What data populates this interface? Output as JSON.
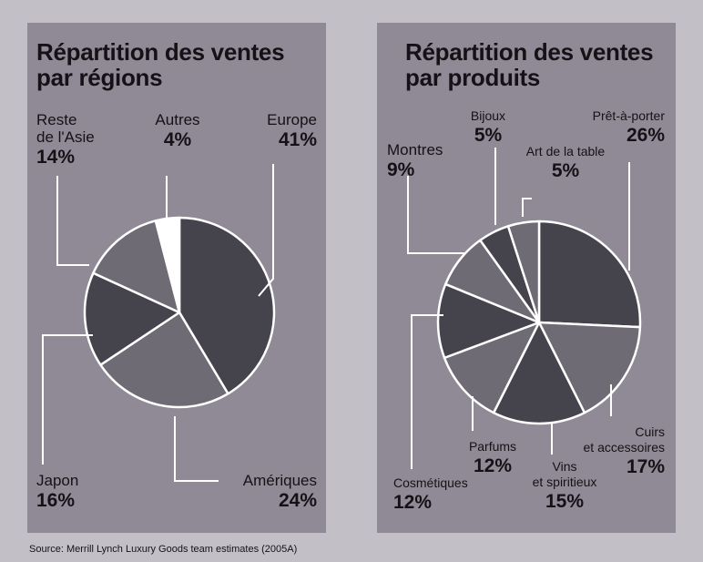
{
  "source": "Source: Merrill Lynch Luxury Goods team estimates (2005A)",
  "colors": {
    "background": "#c2bfc7",
    "panel": "#8f8a95",
    "slice_dark": "#45434c",
    "slice_light": "#6f6b75",
    "slice_white": "#ffffff",
    "stroke": "#ffffff",
    "text": "#141217"
  },
  "chart_data": [
    {
      "type": "pie",
      "title_lines": [
        "Répartition des ventes",
        "par régions"
      ],
      "slices": [
        {
          "name": "Europe",
          "name_lines": [
            "Europe"
          ],
          "value": 41,
          "value_label": "41%",
          "color": "#45434c"
        },
        {
          "name": "Amériques",
          "name_lines": [
            "Amériques"
          ],
          "value": 24,
          "value_label": "24%",
          "color": "#6f6b75"
        },
        {
          "name": "Japon",
          "name_lines": [
            "Japon"
          ],
          "value": 16,
          "value_label": "16%",
          "color": "#45434c"
        },
        {
          "name": "Reste de l'Asie",
          "name_lines": [
            "Reste",
            "de l'Asie"
          ],
          "value": 14,
          "value_label": "14%",
          "color": "#6f6b75"
        },
        {
          "name": "Autres",
          "name_lines": [
            "Autres"
          ],
          "value": 4,
          "value_label": "4%",
          "color": "#ffffff"
        }
      ]
    },
    {
      "type": "pie",
      "title_lines": [
        "Répartition des ventes",
        "par produits"
      ],
      "slices": [
        {
          "name": "Prêt-à-porter",
          "name_lines": [
            "Prêt-à-porter"
          ],
          "value": 26,
          "value_label": "26%",
          "color": "#45434c"
        },
        {
          "name": "Cuirs et accessoires",
          "name_lines": [
            "Cuirs",
            "et accessoires"
          ],
          "value": 17,
          "value_label": "17%",
          "color": "#6f6b75"
        },
        {
          "name": "Vins et spiritieux",
          "name_lines": [
            "Vins",
            "et spiritieux"
          ],
          "value": 15,
          "value_label": "15%",
          "color": "#45434c"
        },
        {
          "name": "Parfums",
          "name_lines": [
            "Parfums"
          ],
          "value": 12,
          "value_label": "12%",
          "color": "#6f6b75"
        },
        {
          "name": "Cosmétiques",
          "name_lines": [
            "Cosmétiques"
          ],
          "value": 12,
          "value_label": "12%",
          "color": "#45434c"
        },
        {
          "name": "Montres",
          "name_lines": [
            "Montres"
          ],
          "value": 9,
          "value_label": "9%",
          "color": "#6f6b75"
        },
        {
          "name": "Bijoux",
          "name_lines": [
            "Bijoux"
          ],
          "value": 5,
          "value_label": "5%",
          "color": "#45434c"
        },
        {
          "name": "Art de la table",
          "name_lines": [
            "Art de la table"
          ],
          "value": 5,
          "value_label": "5%",
          "color": "#6f6b75"
        }
      ]
    }
  ]
}
